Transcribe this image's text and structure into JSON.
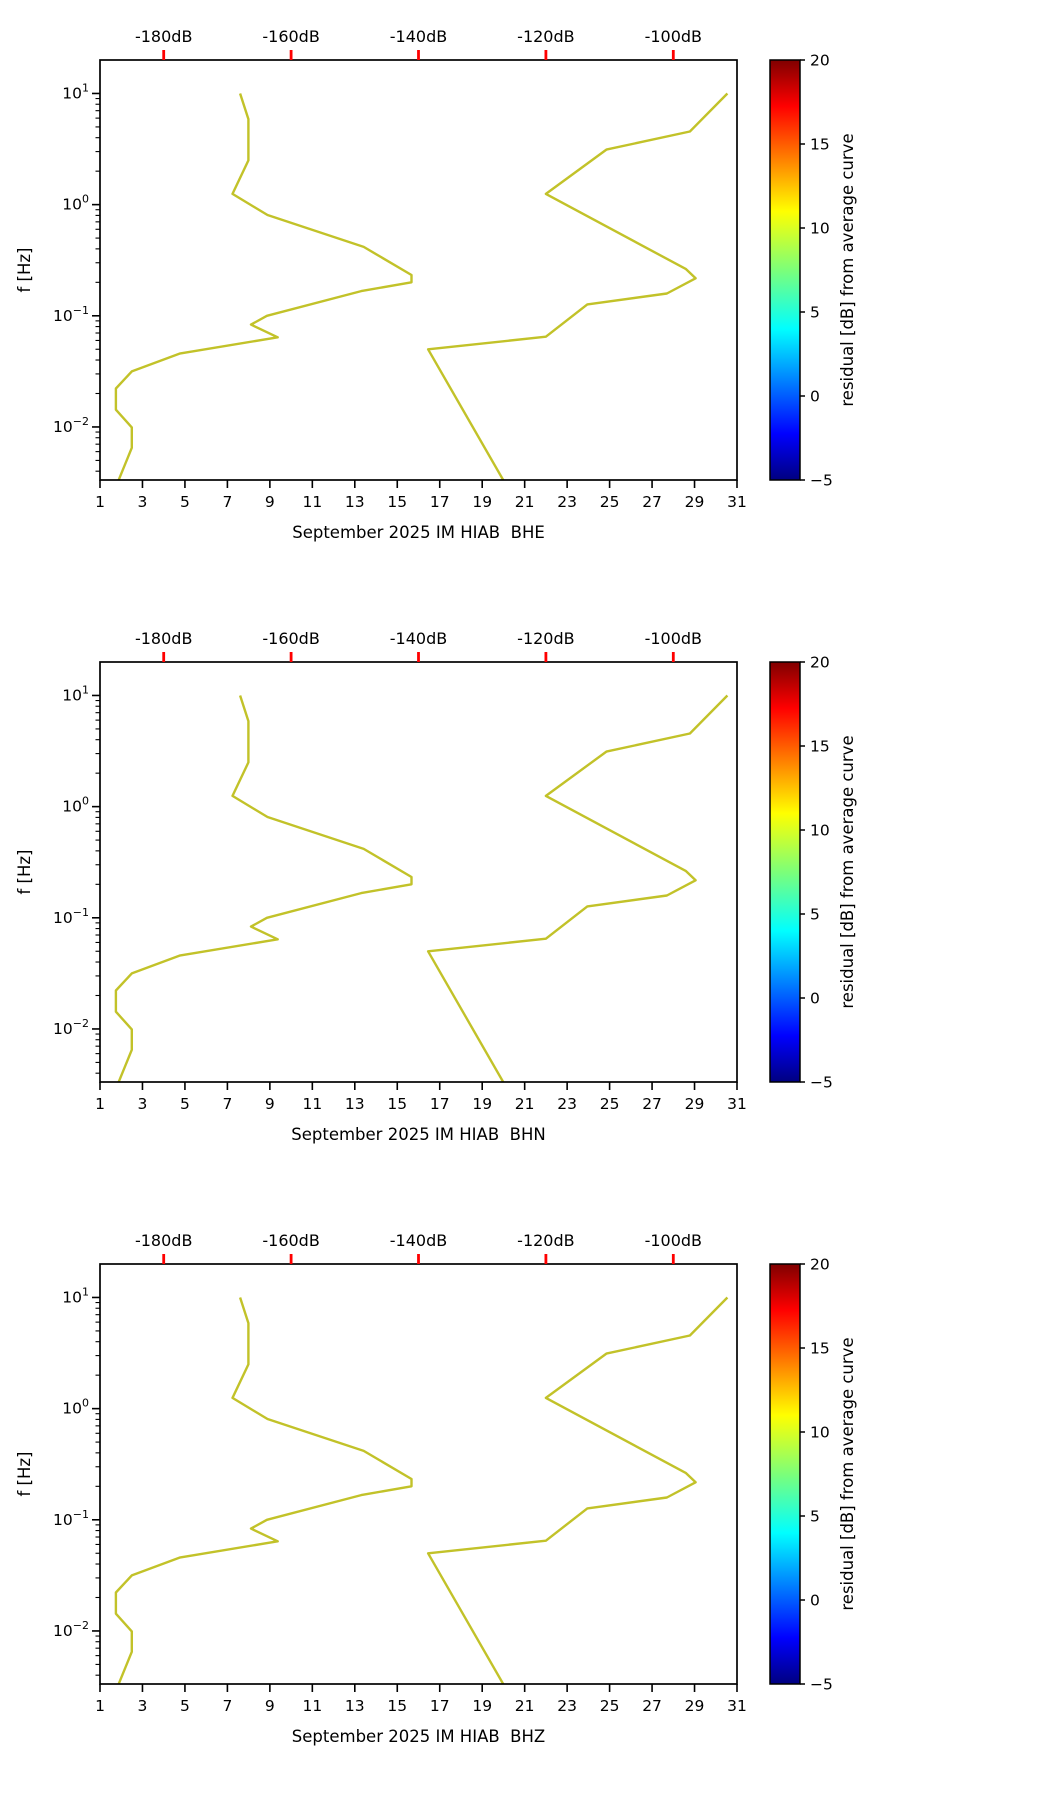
{
  "figure": {
    "background": "#ffffff",
    "accent_red": "#ff0000",
    "curve_color": "#c2c229"
  },
  "chart_data": {
    "type": "line",
    "description": "Three stacked PSD noise-model panels (seismic station day plot, empty month) with low/high noise model curves drawn against the top dB axis",
    "panels": [
      {
        "xlabel": "September 2025 IM HIAB  BHE"
      },
      {
        "xlabel": "September 2025 IM HIAB  BHN"
      },
      {
        "xlabel": "September 2025 IM HIAB  BHZ"
      }
    ],
    "ylabel": "f [Hz]",
    "y_axis": {
      "scale": "log",
      "min": 0.003333,
      "max": 20,
      "major_ticks": [
        10,
        1,
        0.1,
        0.01
      ],
      "major_tick_labels": [
        "10¹",
        "10⁰",
        "10⁻¹",
        "10⁻²"
      ],
      "major_tick_exponents": [
        "1",
        "0",
        "-1",
        "-2"
      ]
    },
    "x_axis": {
      "min": 1,
      "max": 31,
      "ticks": [
        1,
        3,
        5,
        7,
        9,
        11,
        13,
        15,
        17,
        19,
        21,
        23,
        25,
        27,
        29,
        31
      ],
      "tick_labels": [
        "1",
        "3",
        "5",
        "7",
        "9",
        "11",
        "13",
        "15",
        "17",
        "19",
        "21",
        "23",
        "25",
        "27",
        "29",
        "31"
      ]
    },
    "top_axis": {
      "color": "#ff0000",
      "db_at_x_min": -190,
      "db_at_x_max": -90,
      "ticks": [
        -180,
        -160,
        -140,
        -120,
        -100
      ],
      "tick_labels": [
        "-180dB",
        "-160dB",
        "-140dB",
        "-120dB",
        "-100dB"
      ]
    },
    "colorbar": {
      "label": "residual [dB] from average curve",
      "min": -5,
      "max": 20,
      "ticks": [
        20,
        15,
        10,
        5,
        0,
        -5
      ],
      "tick_labels": [
        "20",
        "15",
        "10",
        "5",
        "0",
        "−5"
      ],
      "colormap_name": "jet",
      "colormap_stops": {
        "fractions": [
          0,
          0.11,
          0.36,
          0.5,
          0.64,
          0.89,
          1
        ],
        "colors": [
          "#000080",
          "#0000ff",
          "#00ffff",
          "#7cff79",
          "#ffff00",
          "#ff0000",
          "#800000"
        ]
      }
    },
    "series": [
      {
        "name": "low-noise-model",
        "color": "#c2c229",
        "width": 2.4,
        "points_f_hz_db": [
          [
            10.0,
            -168.0
          ],
          [
            5.882,
            -166.7
          ],
          [
            2.5,
            -166.7
          ],
          [
            1.25,
            -169.2
          ],
          [
            0.8065,
            -163.7
          ],
          [
            0.4167,
            -148.6
          ],
          [
            0.2326,
            -141.1
          ],
          [
            0.2,
            -141.1
          ],
          [
            0.1667,
            -149.0
          ],
          [
            0.1,
            -163.8
          ],
          [
            0.0833,
            -166.3
          ],
          [
            0.0641,
            -162.1
          ],
          [
            0.0457,
            -177.5
          ],
          [
            0.0316,
            -185.0
          ],
          [
            0.0222,
            -187.5
          ],
          [
            0.0143,
            -187.5
          ],
          [
            0.0099,
            -185.0
          ],
          [
            0.0065,
            -185.0
          ],
          [
            0.003,
            -187.4
          ]
        ]
      },
      {
        "name": "high-noise-model",
        "color": "#c2c229",
        "width": 2.4,
        "points_f_hz_db": [
          [
            10.0,
            -91.5
          ],
          [
            4.545,
            -97.4
          ],
          [
            3.125,
            -110.5
          ],
          [
            1.25,
            -120.0
          ],
          [
            0.2632,
            -98.0
          ],
          [
            0.2174,
            -96.5
          ],
          [
            0.1587,
            -101.0
          ],
          [
            0.1266,
            -113.5
          ],
          [
            0.0649,
            -120.0
          ],
          [
            0.05,
            -138.5
          ],
          [
            0.00333,
            -126.7
          ]
        ]
      }
    ]
  }
}
